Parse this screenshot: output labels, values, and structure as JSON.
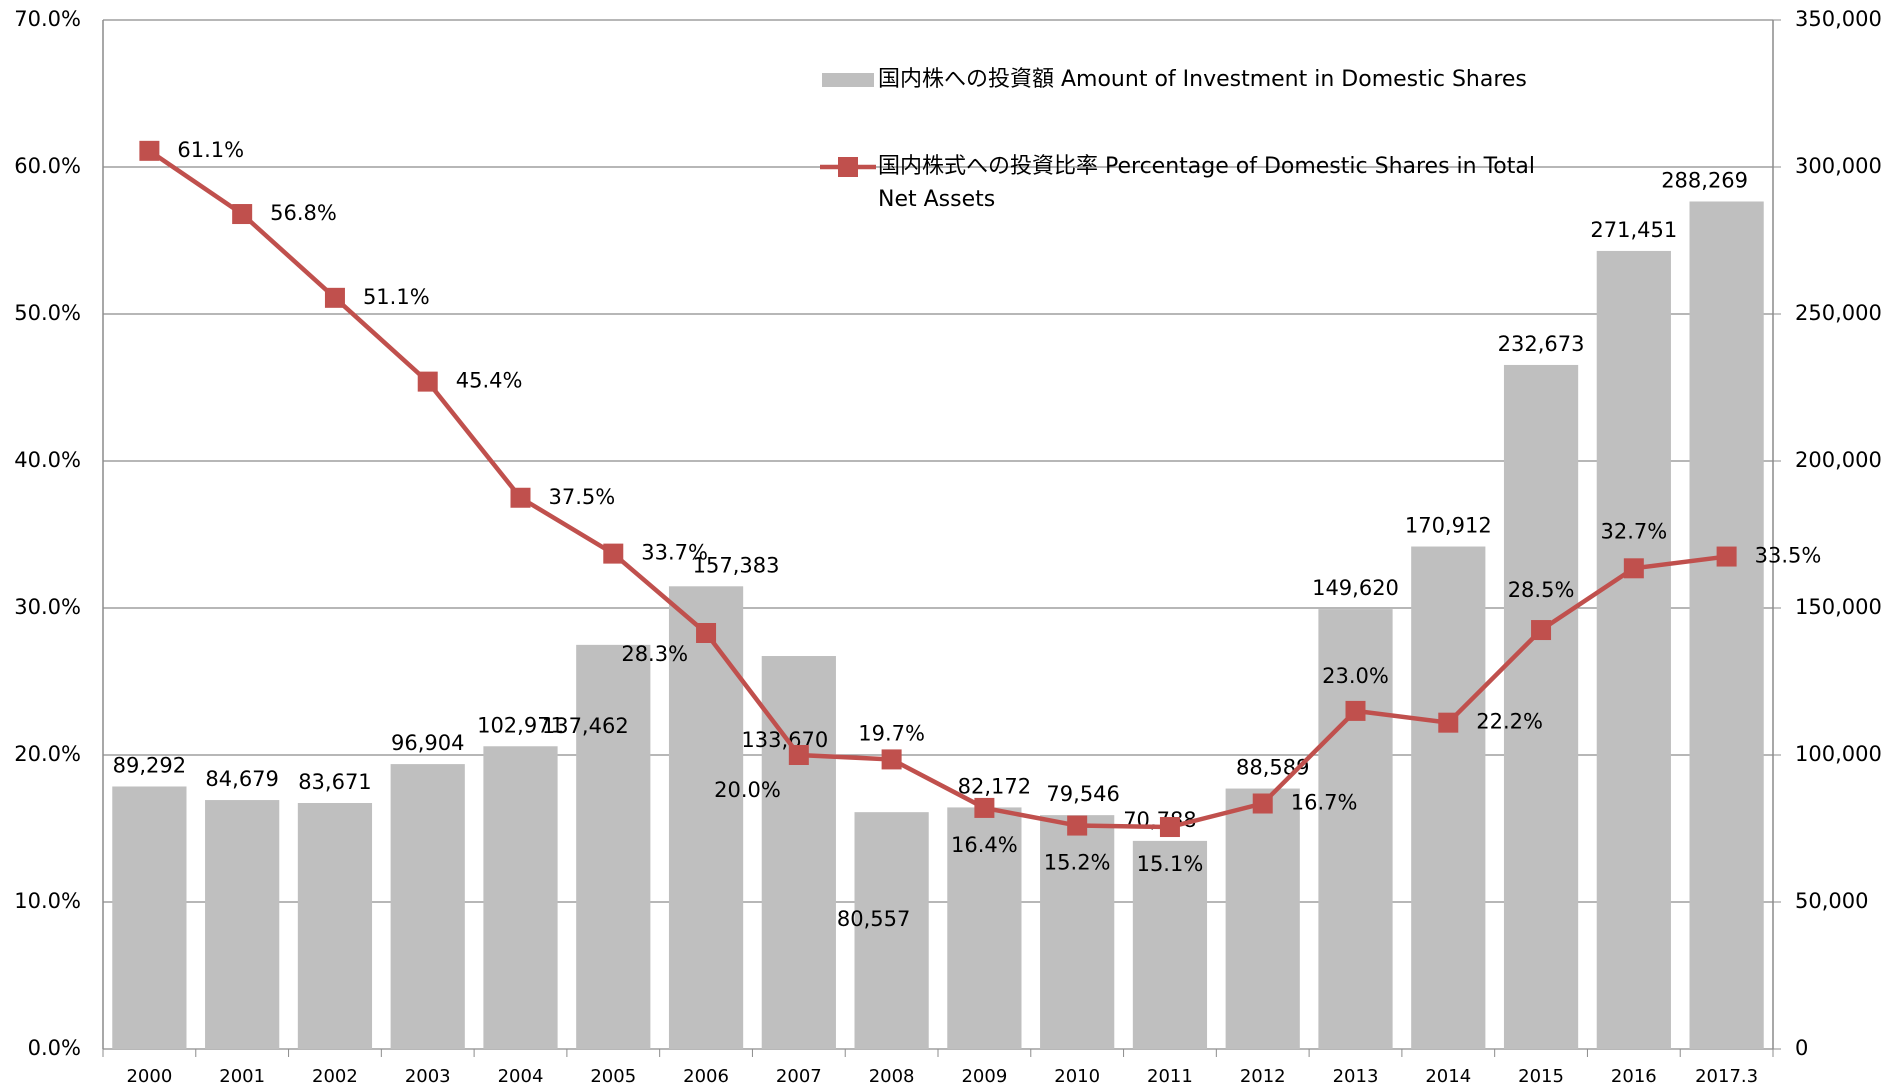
{
  "chart_data": {
    "type": "bar_line",
    "categories": [
      "2000",
      "2001",
      "2002",
      "2003",
      "2004",
      "2005",
      "2006",
      "2007",
      "2008",
      "2009",
      "2010",
      "2011",
      "2012",
      "2013",
      "2014",
      "2015",
      "2016",
      "2017.3"
    ],
    "series": [
      {
        "name": "国内株への投資額 Amount of Investment in Domestic Shares",
        "type": "bar",
        "color": "#bfbfbf",
        "axis": "y2",
        "values": [
          89292,
          84679,
          83671,
          96904,
          102971,
          137462,
          157383,
          133670,
          80557,
          82172,
          79546,
          70788,
          88589,
          149620,
          170912,
          232673,
          271451,
          288269
        ],
        "value_labels": [
          "89,292",
          "84,679",
          "83,671",
          "96,904",
          "102,971",
          "137,462",
          "157,383",
          "133,670",
          "80,557",
          "82,172",
          "79,546",
          "70,788",
          "88,589",
          "149,620",
          "170,912",
          "232,673",
          "271,451",
          "288,269"
        ]
      },
      {
        "name": "国内株式への投資比率 Percentage of Domestic Shares in Total Net Assets",
        "type": "line",
        "color": "#c0504d",
        "axis": "y",
        "values": [
          61.1,
          56.8,
          51.1,
          45.4,
          37.5,
          33.7,
          28.3,
          20.0,
          19.7,
          16.4,
          15.2,
          15.1,
          16.7,
          23.0,
          22.2,
          28.5,
          32.7,
          33.5
        ],
        "value_labels": [
          "61.1%",
          "56.8%",
          "51.1%",
          "45.4%",
          "37.5%",
          "33.7%",
          "28.3%",
          "20.0%",
          "19.7%",
          "16.4%",
          "15.2%",
          "15.1%",
          "16.7%",
          "23.0%",
          "22.2%",
          "28.5%",
          "32.7%",
          "33.5%"
        ]
      }
    ],
    "ylim": [
      0,
      70
    ],
    "yticks": [
      {
        "value": 0,
        "label": "0.0%"
      },
      {
        "value": 10,
        "label": "10.0%"
      },
      {
        "value": 20,
        "label": "20.0%"
      },
      {
        "value": 30,
        "label": "30.0%"
      },
      {
        "value": 40,
        "label": "40.0%"
      },
      {
        "value": 50,
        "label": "50.0%"
      },
      {
        "value": 60,
        "label": "60.0%"
      },
      {
        "value": 70,
        "label": "70.0%"
      }
    ],
    "y2lim": [
      0,
      350000
    ],
    "y2ticks": [
      0,
      {
        "value": 50000,
        "label": "50,000"
      },
      {
        "value": 100000,
        "label": "100,000"
      },
      {
        "value": 150000,
        "label": "150,000"
      },
      {
        "value": 200000,
        "label": "200,000"
      },
      {
        "value": 250000,
        "label": "250,000"
      },
      {
        "value": 300000,
        "label": "300,000"
      },
      {
        "value": 350000,
        "label": "350,000"
      }
    ],
    "grid": true
  }
}
